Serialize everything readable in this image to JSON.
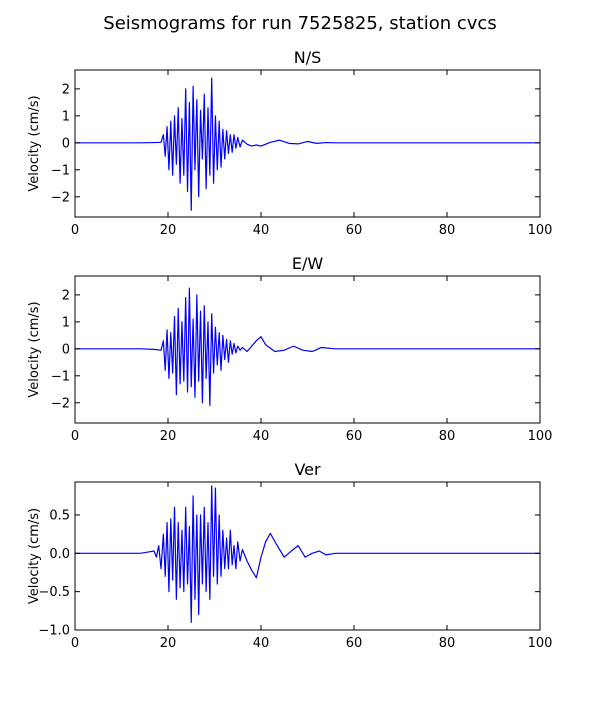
{
  "figure": {
    "title": "Seismograms for run 7525825, station cvcs"
  },
  "chart_data": [
    {
      "type": "line",
      "title": "N/S",
      "xlabel": "",
      "ylabel": "Velocity (cm/s)",
      "xlim": [
        0,
        100
      ],
      "ylim": [
        -2.75,
        2.7
      ],
      "xticks": [
        0,
        20,
        40,
        60,
        80,
        100
      ],
      "yticks": [
        -2,
        -1,
        0,
        1,
        2
      ],
      "grid": false,
      "line_color": "#0000ff",
      "series": [
        {
          "x": [
            0,
            14,
            17,
            18.5,
            19.0,
            19.4,
            19.8,
            20.2,
            20.6,
            21.0,
            21.4,
            21.8,
            22.2,
            22.6,
            23.0,
            23.4,
            23.8,
            24.2,
            24.6,
            25.0,
            25.4,
            25.8,
            26.2,
            26.6,
            27.0,
            27.4,
            27.8,
            28.2,
            28.6,
            29.0,
            29.4,
            29.8,
            30.2,
            30.6,
            31.0,
            31.4,
            31.8,
            32.2,
            32.6,
            33.0,
            33.4,
            33.8,
            34.2,
            34.6,
            35.0,
            35.5,
            36.0,
            37.0,
            38.0,
            39.0,
            40.0,
            42.0,
            44.0,
            46.0,
            48.0,
            50.0,
            52.0,
            54.0,
            56.0,
            60.0,
            70.0,
            80.0,
            90.0,
            100.0
          ],
          "y": [
            0,
            0,
            0.01,
            0.02,
            0.3,
            -0.5,
            0.6,
            -1.0,
            0.8,
            -1.2,
            1.0,
            -0.8,
            1.3,
            -1.5,
            0.9,
            -1.2,
            2.0,
            -1.8,
            1.5,
            -2.5,
            2.1,
            -1.0,
            1.6,
            -2.0,
            1.2,
            -0.6,
            1.8,
            -1.7,
            1.3,
            -1.2,
            2.4,
            -1.5,
            1.0,
            -1.0,
            0.8,
            -0.9,
            0.5,
            -0.6,
            0.45,
            -0.4,
            0.3,
            -0.35,
            0.3,
            -0.2,
            0.2,
            -0.15,
            0.1,
            -0.05,
            -0.12,
            -0.08,
            -0.12,
            0.02,
            0.1,
            -0.02,
            -0.04,
            0.05,
            -0.02,
            0.01,
            0,
            0,
            0,
            0,
            0,
            0
          ]
        }
      ]
    },
    {
      "type": "line",
      "title": "E/W",
      "xlabel": "",
      "ylabel": "Velocity (cm/s)",
      "xlim": [
        0,
        100
      ],
      "ylim": [
        -2.75,
        2.7
      ],
      "xticks": [
        0,
        20,
        40,
        60,
        80,
        100
      ],
      "yticks": [
        -2,
        -1,
        0,
        1,
        2
      ],
      "grid": false,
      "line_color": "#0000ff",
      "series": [
        {
          "x": [
            0,
            14,
            17,
            18.5,
            19.0,
            19.4,
            19.8,
            20.2,
            20.6,
            21.0,
            21.4,
            21.8,
            22.2,
            22.6,
            23.0,
            23.4,
            23.8,
            24.2,
            24.6,
            25.0,
            25.4,
            25.8,
            26.2,
            26.6,
            27.0,
            27.4,
            27.8,
            28.2,
            28.6,
            29.0,
            29.4,
            29.8,
            30.2,
            30.6,
            31.0,
            31.4,
            31.8,
            32.2,
            32.6,
            33.0,
            33.4,
            33.8,
            34.2,
            34.6,
            35.0,
            35.5,
            36.0,
            37.0,
            38.0,
            39.0,
            40.0,
            41.0,
            43.0,
            45.0,
            47.0,
            49.0,
            51.0,
            53.0,
            56.0,
            60.0,
            70.0,
            80.0,
            90.0,
            100.0
          ],
          "y": [
            0,
            0,
            -0.02,
            -0.05,
            0.3,
            -0.8,
            0.7,
            -1.1,
            0.6,
            -0.9,
            1.2,
            -1.7,
            1.5,
            -1.3,
            1.0,
            -1.2,
            1.9,
            -1.6,
            2.25,
            -1.4,
            1.1,
            -1.8,
            2.0,
            -1.2,
            1.4,
            -2.0,
            1.6,
            -1.1,
            1.0,
            -2.1,
            1.3,
            -0.9,
            0.8,
            -0.6,
            0.6,
            -0.8,
            0.5,
            -0.4,
            0.35,
            -0.5,
            0.3,
            -0.2,
            0.2,
            -0.15,
            0.1,
            -0.05,
            0.05,
            -0.1,
            0.1,
            0.3,
            0.45,
            0.15,
            -0.1,
            -0.05,
            0.1,
            -0.05,
            -0.1,
            0.05,
            0,
            0,
            0,
            0,
            0,
            0
          ]
        }
      ]
    },
    {
      "type": "line",
      "title": "Ver",
      "xlabel": "",
      "ylabel": "Velocity (cm/s)",
      "xlim": [
        0,
        100
      ],
      "ylim": [
        -1.0,
        0.93
      ],
      "xticks": [
        0,
        20,
        40,
        60,
        80,
        100
      ],
      "yticks": [
        -1.0,
        -0.5,
        0.0,
        0.5
      ],
      "ytick_labels": [
        "−1.0",
        "−0.5",
        "0.0",
        "0.5"
      ],
      "grid": false,
      "line_color": "#0000ff",
      "series": [
        {
          "x": [
            0,
            14,
            16,
            17.0,
            17.5,
            18.0,
            18.5,
            19.0,
            19.4,
            19.8,
            20.2,
            20.6,
            21.0,
            21.4,
            21.8,
            22.2,
            22.6,
            23.0,
            23.4,
            23.8,
            24.2,
            24.6,
            25.0,
            25.4,
            25.8,
            26.2,
            26.6,
            27.0,
            27.4,
            27.8,
            28.2,
            28.6,
            29.0,
            29.4,
            29.8,
            30.2,
            30.6,
            31.0,
            31.4,
            31.8,
            32.2,
            32.6,
            33.0,
            33.4,
            33.8,
            34.2,
            34.6,
            35.0,
            35.5,
            36.0,
            37.0,
            38.0,
            39.0,
            40.0,
            41.0,
            42.0,
            43.5,
            45.0,
            46.5,
            48.0,
            49.5,
            51.0,
            52.5,
            54.0,
            56.0,
            60.0,
            70.0,
            80.0,
            90.0,
            100.0
          ],
          "y": [
            0,
            0,
            0.02,
            0.03,
            -0.05,
            0.1,
            -0.2,
            0.25,
            -0.3,
            0.4,
            -0.5,
            0.45,
            -0.35,
            0.6,
            -0.6,
            0.4,
            -0.45,
            0.3,
            -0.5,
            0.6,
            -0.4,
            0.35,
            -0.9,
            0.75,
            -0.6,
            0.5,
            -0.8,
            0.5,
            -0.4,
            0.6,
            -0.5,
            0.4,
            -0.6,
            0.88,
            -0.3,
            0.85,
            -0.4,
            0.5,
            -0.3,
            0.3,
            -0.2,
            0.2,
            -0.2,
            0.3,
            -0.15,
            0.1,
            -0.2,
            0.15,
            -0.1,
            0.05,
            -0.1,
            -0.22,
            -0.32,
            -0.05,
            0.15,
            0.26,
            0.1,
            -0.05,
            0.03,
            0.1,
            -0.05,
            0.0,
            0.03,
            -0.02,
            0,
            0,
            0,
            0,
            0,
            0
          ]
        }
      ]
    }
  ]
}
